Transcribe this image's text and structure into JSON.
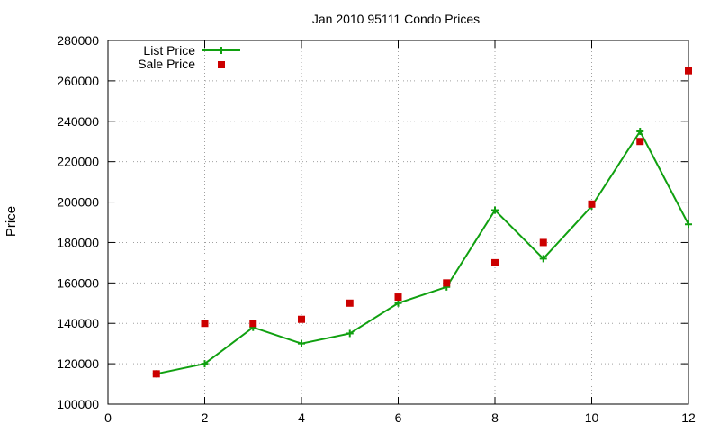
{
  "chart_data": {
    "type": "line",
    "title": "Jan 2010 95111 Condo Prices",
    "xlabel": "",
    "ylabel": "Price",
    "xlim": [
      0,
      12
    ],
    "ylim": [
      100000,
      280000
    ],
    "xticks": [
      0,
      2,
      4,
      6,
      8,
      10,
      12
    ],
    "yticks": [
      100000,
      120000,
      140000,
      160000,
      180000,
      200000,
      220000,
      240000,
      260000,
      280000
    ],
    "grid": true,
    "legend_position": "top-left",
    "series": [
      {
        "name": "List Price",
        "style": "line-plus",
        "color": "#10a010",
        "x": [
          1,
          2,
          3,
          4,
          5,
          6,
          7,
          8,
          9,
          10,
          11,
          12
        ],
        "y": [
          115000,
          120000,
          138000,
          130000,
          135000,
          150000,
          158000,
          196000,
          172000,
          198000,
          235000,
          189000
        ]
      },
      {
        "name": "Sale Price",
        "style": "square-points",
        "color": "#cc0000",
        "x": [
          1,
          2,
          3,
          4,
          5,
          6,
          7,
          8,
          9,
          10,
          11,
          12
        ],
        "y": [
          115000,
          140000,
          140000,
          142000,
          150000,
          153000,
          160000,
          170000,
          180000,
          199000,
          230000,
          265000
        ]
      }
    ]
  }
}
